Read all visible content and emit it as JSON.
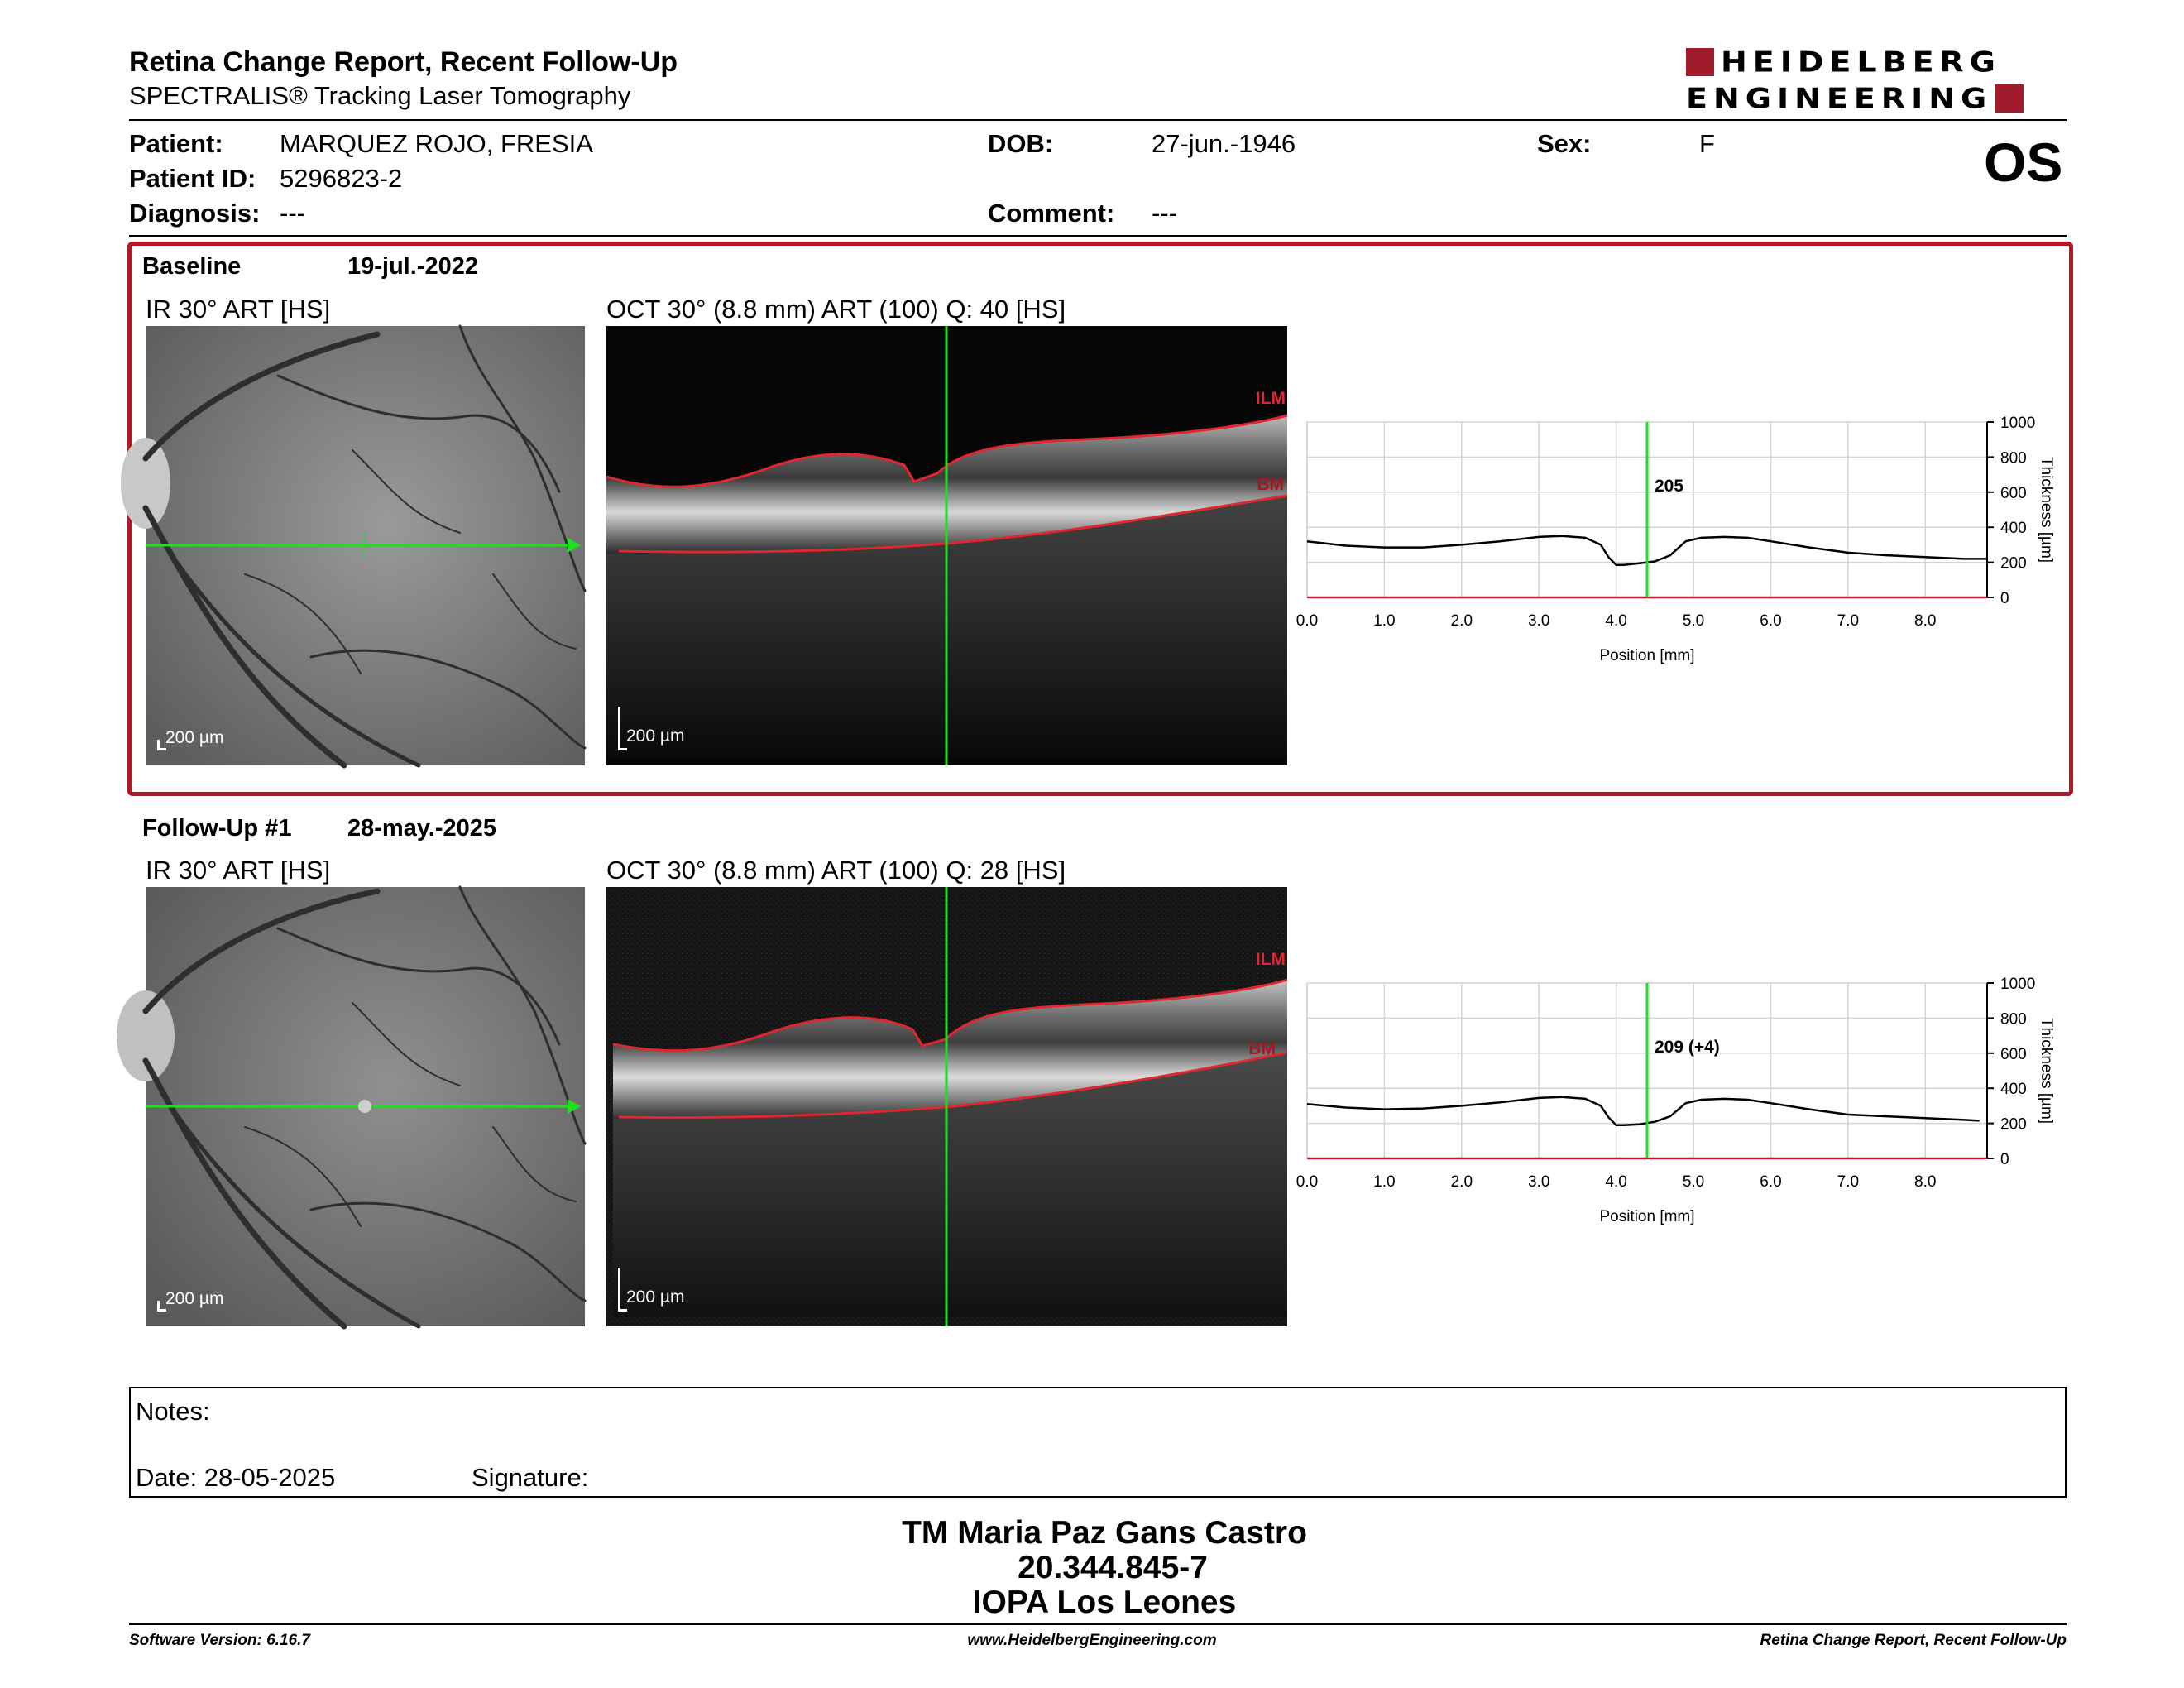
{
  "header": {
    "title": "Retina Change Report, Recent Follow-Up",
    "subtitle": "SPECTRALIS® Tracking Laser Tomography",
    "logo_line1": "HEIDELBERG",
    "logo_line2": "ENGINEERING",
    "eye": "OS"
  },
  "patient": {
    "patient_label": "Patient:",
    "patient_value": "MARQUEZ ROJO, FRESIA",
    "id_label": "Patient ID:",
    "id_value": "5296823-2",
    "diagnosis_label": "Diagnosis:",
    "diagnosis_value": "---",
    "dob_label": "DOB:",
    "dob_value": "27-jun.-1946",
    "comment_label": "Comment:",
    "comment_value": "---",
    "sex_label": "Sex:",
    "sex_value": "F"
  },
  "baseline": {
    "label": "Baseline",
    "date": "19-jul.-2022",
    "ir_title": "IR 30° ART [HS]",
    "oct_title": "OCT 30° (8.8 mm) ART (100) Q: 40 [HS]",
    "scale": "200 µm",
    "ilm": "ILM",
    "bm": "BM"
  },
  "followup": {
    "label": "Follow-Up #1",
    "date": "28-may.-2025",
    "ir_title": "IR 30° ART [HS]",
    "oct_title": "OCT 30° (8.8 mm) ART (100) Q: 28 [HS]",
    "scale": "200 µm",
    "ilm": "ILM",
    "bm": "BM"
  },
  "chart_data": [
    {
      "type": "line",
      "xlabel": "Position [mm]",
      "ylabel": "Thickness [µm]",
      "xlim": [
        0.0,
        8.8
      ],
      "ylim": [
        0,
        1000
      ],
      "xticks": [
        "0.0",
        "1.0",
        "2.0",
        "3.0",
        "4.0",
        "5.0",
        "6.0",
        "7.0",
        "8.0"
      ],
      "yticks": [
        "0",
        "200",
        "400",
        "600",
        "800",
        "1000"
      ],
      "marker_x": 4.4,
      "marker_label": "205",
      "grid": true,
      "x": [
        0.0,
        0.5,
        1.0,
        1.5,
        2.0,
        2.5,
        3.0,
        3.3,
        3.6,
        3.8,
        3.9,
        4.0,
        4.1,
        4.3,
        4.5,
        4.7,
        4.9,
        5.1,
        5.4,
        5.7,
        6.0,
        6.5,
        7.0,
        7.5,
        8.0,
        8.5,
        8.8
      ],
      "values": [
        320,
        295,
        285,
        285,
        300,
        320,
        345,
        350,
        340,
        300,
        230,
        185,
        185,
        195,
        205,
        240,
        320,
        340,
        345,
        340,
        320,
        285,
        255,
        240,
        230,
        220,
        220
      ]
    },
    {
      "type": "line",
      "xlabel": "Position [mm]",
      "ylabel": "Thickness [µm]",
      "xlim": [
        0.0,
        8.8
      ],
      "ylim": [
        0,
        1000
      ],
      "xticks": [
        "0.0",
        "1.0",
        "2.0",
        "3.0",
        "4.0",
        "5.0",
        "6.0",
        "7.0",
        "8.0"
      ],
      "yticks": [
        "0",
        "200",
        "400",
        "600",
        "800",
        "1000"
      ],
      "marker_x": 4.4,
      "marker_label": "209 (+4)",
      "grid": true,
      "x": [
        0.0,
        0.5,
        1.0,
        1.5,
        2.0,
        2.5,
        3.0,
        3.3,
        3.6,
        3.8,
        3.9,
        4.0,
        4.1,
        4.3,
        4.5,
        4.7,
        4.9,
        5.1,
        5.4,
        5.7,
        6.0,
        6.5,
        7.0,
        7.5,
        8.0,
        8.5,
        8.7
      ],
      "values": [
        310,
        290,
        280,
        285,
        300,
        320,
        345,
        350,
        340,
        300,
        235,
        190,
        190,
        195,
        209,
        240,
        315,
        335,
        340,
        335,
        315,
        280,
        250,
        240,
        230,
        220,
        215
      ]
    }
  ],
  "notes": {
    "notes_label": "Notes:",
    "date_label": "Date: 28-05-2025",
    "signature_label": "Signature:"
  },
  "signatory": {
    "name": "TM Maria Paz Gans Castro",
    "rut": "20.344.845-7",
    "institution": "IOPA Los Leones"
  },
  "footer": {
    "version": "Software Version: 6.16.7",
    "website": "www.HeidelbergEngineering.com",
    "report": "Retina Change Report, Recent Follow-Up"
  }
}
